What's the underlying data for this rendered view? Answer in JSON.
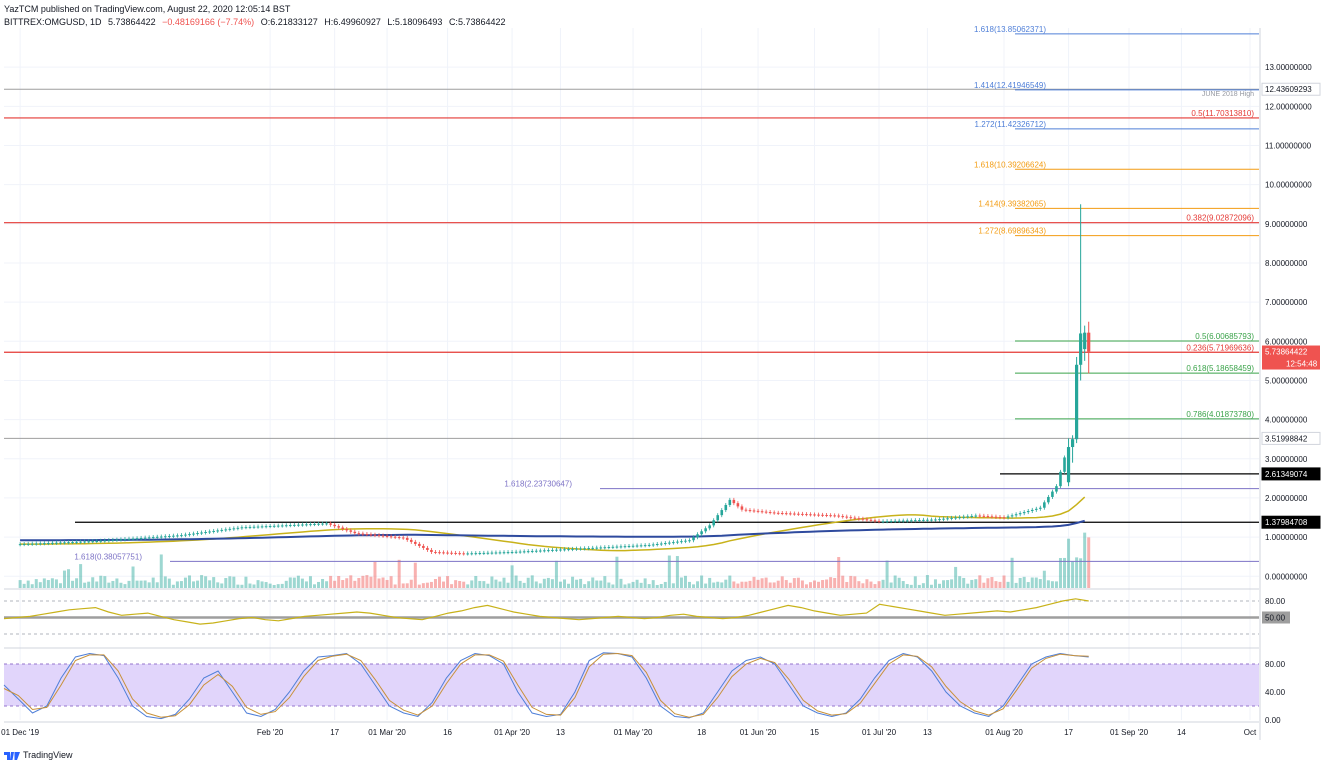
{
  "header": {
    "publisher": "YazTCM published on TradingView.com, August 22, 2020 12:05:14 BST",
    "symbol": "BITTREX:OMGUSD, 1D",
    "last": "5.73864422",
    "change": "−0.48169166 (−7.74%)",
    "open": "O:6.21833127",
    "high": "H:6.49960927",
    "low": "L:5.18096493",
    "close": "C:5.73864422"
  },
  "footer": {
    "brand": "TradingView"
  },
  "colors": {
    "up": "#26a69a",
    "down": "#ef5350",
    "red_level": "#e53935",
    "blue_fib": "#4f7fd8",
    "orange_fib": "#f39c12",
    "green_fib": "#3aa34a",
    "purple_fib": "#7d73c6",
    "sma_short": "#c8b21a",
    "sma_long": "#2e4a9e",
    "stoch_bg": "#e1d5fb"
  },
  "chart_data": [
    {
      "type": "candlestick",
      "title": "BITTREX:OMGUSD, 1D",
      "ylim": [
        -0.3,
        14.0
      ],
      "y_ticks": [
        "0.00000000",
        "1.00000000",
        "2.00000000",
        "3.00000000",
        "4.00000000",
        "5.00000000",
        "6.00000000",
        "7.00000000",
        "8.00000000",
        "9.00000000",
        "10.00000000",
        "11.00000000",
        "12.00000000",
        "13.00000000"
      ],
      "y_tick_values": [
        0,
        1,
        2,
        3,
        4,
        5,
        6,
        7,
        8,
        9,
        10,
        11,
        12,
        13
      ],
      "x_ticks": [
        "01 Dec '19",
        "Feb '20",
        "17",
        "01 Mar '20",
        "16",
        "01 Apr '20",
        "13",
        "01 May '20",
        "18",
        "01 Jun '20",
        "15",
        "01 Jul '20",
        "13",
        "01 Aug '20",
        "17",
        "01 Sep '20",
        "14",
        "Oct"
      ],
      "x_tick_dates": [
        "2019-12-01",
        "2020-02-01",
        "2020-02-17",
        "2020-03-01",
        "2020-03-16",
        "2020-04-01",
        "2020-04-13",
        "2020-05-01",
        "2020-05-18",
        "2020-06-01",
        "2020-06-15",
        "2020-07-01",
        "2020-07-13",
        "2020-08-01",
        "2020-08-17",
        "2020-09-01",
        "2020-09-14",
        "2020-10-01"
      ],
      "price_path": [
        [
          "2019-12-01",
          0.82
        ],
        [
          "2019-12-20",
          0.9
        ],
        [
          "2020-01-10",
          1.05
        ],
        [
          "2020-01-25",
          1.25
        ],
        [
          "2020-02-15",
          1.35
        ],
        [
          "2020-02-22",
          1.1
        ],
        [
          "2020-03-05",
          0.98
        ],
        [
          "2020-03-12",
          0.62
        ],
        [
          "2020-03-20",
          0.58
        ],
        [
          "2020-04-01",
          0.62
        ],
        [
          "2020-04-20",
          0.72
        ],
        [
          "2020-05-05",
          0.8
        ],
        [
          "2020-05-15",
          0.92
        ],
        [
          "2020-05-20",
          1.3
        ],
        [
          "2020-05-25",
          1.95
        ],
        [
          "2020-05-28",
          1.7
        ],
        [
          "2020-06-05",
          1.62
        ],
        [
          "2020-06-20",
          1.55
        ],
        [
          "2020-07-01",
          1.4
        ],
        [
          "2020-07-15",
          1.45
        ],
        [
          "2020-07-25",
          1.55
        ],
        [
          "2020-08-01",
          1.5
        ],
        [
          "2020-08-10",
          1.75
        ],
        [
          "2020-08-14",
          2.3
        ],
        [
          "2020-08-17",
          3.4
        ],
        [
          "2020-08-19",
          5.5
        ],
        [
          "2020-08-20",
          6.2
        ],
        [
          "2020-08-21",
          6.22
        ],
        [
          "2020-08-22",
          5.74
        ]
      ],
      "last_candles": [
        {
          "date": "2020-08-17",
          "o": 2.4,
          "h": 3.52,
          "l": 2.3,
          "c": 3.3
        },
        {
          "date": "2020-08-18",
          "o": 3.3,
          "h": 3.6,
          "l": 2.9,
          "c": 3.5
        },
        {
          "date": "2020-08-19",
          "o": 3.5,
          "h": 5.6,
          "l": 3.4,
          "c": 5.4
        },
        {
          "date": "2020-08-20",
          "o": 5.4,
          "h": 9.5,
          "l": 5.0,
          "c": 6.2
        },
        {
          "date": "2020-08-21",
          "o": 5.8,
          "h": 6.4,
          "l": 5.5,
          "c": 6.22
        },
        {
          "date": "2020-08-22",
          "o": 6.22,
          "h": 6.5,
          "l": 5.18,
          "c": 5.74
        }
      ],
      "horizontal_lines": [
        {
          "value": 12.43609293,
          "label": "12.43609293",
          "kind": "grey",
          "note": "JUNE 2018 High"
        },
        {
          "value": 11.7031381,
          "label": "0.5(11.70313810)",
          "kind": "red"
        },
        {
          "value": 9.02872096,
          "label": "0.382(9.02872096)",
          "kind": "red"
        },
        {
          "value": 5.71969636,
          "label": "0.236(5.71969636)",
          "kind": "red"
        },
        {
          "value": 2.61349074,
          "label": "2.61349074",
          "kind": "black"
        },
        {
          "value": 1.37984708,
          "label": "1.37984708",
          "kind": "black"
        },
        {
          "value": 3.51998842,
          "label": "3.51998842",
          "kind": "grey"
        }
      ],
      "fib_extensions": [
        {
          "value": 13.85062371,
          "label": "1.618(13.85062371)",
          "color": "blue"
        },
        {
          "value": 12.41946549,
          "label": "1.414(12.41946549)",
          "color": "blue"
        },
        {
          "value": 11.42326712,
          "label": "1.272(11.42326712)",
          "color": "blue"
        },
        {
          "value": 10.39206624,
          "label": "1.618(10.39206624)",
          "color": "orange"
        },
        {
          "value": 9.39382065,
          "label": "1.414(9.39382065)",
          "color": "orange"
        },
        {
          "value": 8.69896343,
          "label": "1.272(8.69896343)",
          "color": "orange"
        },
        {
          "value": 6.00685793,
          "label": "0.5(6.00685793)",
          "color": "green"
        },
        {
          "value": 5.18658459,
          "label": "0.618(5.18658459)",
          "color": "green"
        },
        {
          "value": 4.0187378,
          "label": "0.786(4.01873780)",
          "color": "green"
        },
        {
          "value": 2.23730647,
          "label": "1.618(2.23730647)",
          "color": "purple"
        },
        {
          "value": 0.38057751,
          "label": "1.618(0.38057751)",
          "color": "purple"
        }
      ],
      "last_price_tag": {
        "value": 5.73864422,
        "label": "5.73864422",
        "countdown": "12:54:48"
      }
    },
    {
      "type": "line",
      "name": "RSI",
      "ylim": [
        0,
        100
      ],
      "y_ticks": [
        "80.00",
        "50.00"
      ],
      "values": [
        48,
        50,
        52,
        56,
        60,
        64,
        66,
        68,
        60,
        54,
        56,
        58,
        52,
        46,
        42,
        38,
        40,
        44,
        48,
        50,
        46,
        44,
        48,
        52,
        54,
        56,
        58,
        60,
        58,
        54,
        50,
        48,
        46,
        52,
        58,
        62,
        68,
        72,
        66,
        60,
        56,
        52,
        50,
        48,
        46,
        48,
        50,
        52,
        50,
        48,
        50,
        54,
        56,
        52,
        50,
        48,
        50,
        54,
        60,
        66,
        72,
        68,
        62,
        58,
        54,
        56,
        58,
        74,
        70,
        66,
        62,
        58,
        54,
        56,
        58,
        60,
        62,
        60,
        64,
        68,
        74,
        80,
        84,
        80
      ]
    },
    {
      "type": "line",
      "name": "Stoch RSI",
      "ylim": [
        0,
        100
      ],
      "y_ticks": [
        "80.00",
        "40.00",
        "0.00"
      ],
      "series": [
        {
          "values": [
            50,
            30,
            10,
            20,
            60,
            90,
            95,
            92,
            60,
            20,
            5,
            2,
            8,
            30,
            60,
            70,
            40,
            10,
            5,
            15,
            40,
            70,
            90,
            92,
            95,
            80,
            50,
            20,
            10,
            5,
            25,
            60,
            85,
            95,
            92,
            80,
            40,
            10,
            5,
            8,
            40,
            85,
            96,
            95,
            90,
            60,
            20,
            5,
            3,
            10,
            40,
            70,
            85,
            90,
            80,
            50,
            20,
            10,
            5,
            10,
            30,
            60,
            85,
            95,
            90,
            70,
            40,
            20,
            10,
            5,
            20,
            50,
            80,
            90,
            95,
            92,
            90
          ]
        },
        {
          "values": [
            45,
            35,
            15,
            18,
            50,
            85,
            93,
            93,
            70,
            30,
            10,
            4,
            6,
            22,
            50,
            65,
            48,
            18,
            8,
            12,
            32,
            62,
            85,
            91,
            94,
            85,
            58,
            28,
            14,
            7,
            20,
            52,
            80,
            93,
            93,
            84,
            50,
            18,
            8,
            7,
            32,
            76,
            94,
            95,
            92,
            68,
            28,
            9,
            4,
            8,
            32,
            62,
            80,
            88,
            82,
            58,
            28,
            13,
            7,
            9,
            24,
            52,
            80,
            93,
            91,
            76,
            48,
            26,
            13,
            7,
            16,
            44,
            74,
            88,
            94,
            92,
            91
          ]
        }
      ]
    }
  ]
}
